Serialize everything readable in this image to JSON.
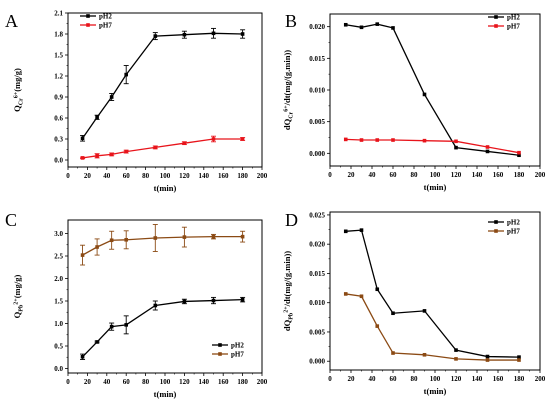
{
  "chart_data": [
    {
      "id": "A",
      "panel_label": "A",
      "type": "line",
      "error_bars": true,
      "xlabel": "t(min)",
      "ylabel_main": "Q",
      "ylabel_sub": "Cr",
      "ylabel_sup": "6+",
      "ylabel_tail": "(mg/g)",
      "xlim": [
        0,
        200
      ],
      "ylim": [
        -0.1,
        2.1
      ],
      "xticks": [
        "0",
        "20",
        "40",
        "60",
        "80",
        "100",
        "120",
        "140",
        "160",
        "180",
        "200"
      ],
      "yticks": [
        "0.0",
        "0.3",
        "0.6",
        "0.9",
        "1.2",
        "1.5",
        "1.8",
        "2.1"
      ],
      "legend_position": "top-left",
      "series": [
        {
          "name": "pH2",
          "color": "#000000",
          "x": [
            15,
            30,
            45,
            60,
            90,
            120,
            150,
            180
          ],
          "y": [
            0.31,
            0.61,
            0.9,
            1.22,
            1.77,
            1.79,
            1.81,
            1.8
          ],
          "err": [
            0.04,
            0.03,
            0.05,
            0.13,
            0.05,
            0.05,
            0.07,
            0.06
          ]
        },
        {
          "name": "pH7",
          "color": "#e8141b",
          "x": [
            15,
            30,
            45,
            60,
            90,
            120,
            150,
            180
          ],
          "y": [
            0.03,
            0.06,
            0.08,
            0.12,
            0.18,
            0.24,
            0.3,
            0.3
          ],
          "err": [
            0.01,
            0.03,
            0.02,
            0.02,
            0.02,
            0.02,
            0.04,
            0.02
          ]
        }
      ]
    },
    {
      "id": "B",
      "panel_label": "B",
      "type": "line",
      "error_bars": false,
      "xlabel": "t(min)",
      "ylabel_main": "dQ",
      "ylabel_sub": "Cr",
      "ylabel_sup": "6+",
      "ylabel_tail": "/dt(mg/(g.min))",
      "xlim": [
        0,
        200
      ],
      "ylim": [
        -0.002,
        0.022
      ],
      "xticks": [
        "0",
        "20",
        "40",
        "60",
        "80",
        "100",
        "120",
        "140",
        "160",
        "180",
        "200"
      ],
      "yticks": [
        "0.000",
        "0.005",
        "0.010",
        "0.015",
        "0.020"
      ],
      "legend_position": "top-right",
      "series": [
        {
          "name": "pH2",
          "color": "#000000",
          "x": [
            15,
            30,
            45,
            60,
            90,
            120,
            150,
            180
          ],
          "y": [
            0.0203,
            0.0199,
            0.0204,
            0.0198,
            0.0093,
            0.0009,
            0.0003,
            -0.0003
          ]
        },
        {
          "name": "pH7",
          "color": "#e8141b",
          "x": [
            15,
            30,
            45,
            60,
            90,
            120,
            150,
            180
          ],
          "y": [
            0.0022,
            0.0021,
            0.0021,
            0.0021,
            0.002,
            0.0019,
            0.001,
            0.0001
          ]
        }
      ]
    },
    {
      "id": "C",
      "panel_label": "C",
      "type": "line",
      "error_bars": true,
      "xlabel": "t(min)",
      "ylabel_main": "Q",
      "ylabel_sub": "Pb",
      "ylabel_sup": "2+",
      "ylabel_tail": "(mg/g)",
      "xlim": [
        0,
        200
      ],
      "ylim": [
        -0.1,
        3.3
      ],
      "xticks": [
        "0",
        "20",
        "40",
        "60",
        "80",
        "100",
        "120",
        "140",
        "160",
        "180",
        "200"
      ],
      "yticks": [
        "0.0",
        "0.5",
        "1.0",
        "1.5",
        "2.0",
        "2.5",
        "3.0"
      ],
      "legend_position": "bottom-right",
      "series": [
        {
          "name": "pH2",
          "color": "#000000",
          "x": [
            15,
            30,
            45,
            60,
            90,
            120,
            150,
            180
          ],
          "y": [
            0.26,
            0.59,
            0.93,
            0.97,
            1.4,
            1.49,
            1.51,
            1.53
          ],
          "err": [
            0.06,
            0.02,
            0.08,
            0.2,
            0.1,
            0.05,
            0.07,
            0.05
          ]
        },
        {
          "name": "pH7",
          "color": "#8b4a14",
          "x": [
            15,
            30,
            45,
            60,
            90,
            120,
            150,
            180
          ],
          "y": [
            2.52,
            2.7,
            2.85,
            2.86,
            2.9,
            2.92,
            2.93,
            2.93
          ],
          "err": [
            0.22,
            0.18,
            0.2,
            0.2,
            0.3,
            0.22,
            0.05,
            0.12
          ]
        }
      ]
    },
    {
      "id": "D",
      "panel_label": "D",
      "type": "line",
      "error_bars": false,
      "xlabel": "t(min)",
      "ylabel_main": "dQ",
      "ylabel_sub": "Pb",
      "ylabel_sup": "2+",
      "ylabel_tail": "/dt(mg/(g.min))",
      "xlim": [
        0,
        200
      ],
      "ylim": [
        -0.0015,
        0.0255
      ],
      "xticks": [
        "0",
        "20",
        "40",
        "60",
        "80",
        "100",
        "120",
        "140",
        "160",
        "180",
        "200"
      ],
      "yticks": [
        "0.000",
        "0.005",
        "0.010",
        "0.015",
        "0.020",
        "0.025"
      ],
      "legend_position": "top-right",
      "series": [
        {
          "name": "pH2",
          "color": "#000000",
          "x": [
            15,
            30,
            45,
            60,
            90,
            120,
            150,
            180
          ],
          "y": [
            0.0222,
            0.0224,
            0.0123,
            0.0082,
            0.0086,
            0.0019,
            0.0008,
            0.0007
          ]
        },
        {
          "name": "pH7",
          "color": "#8b4a14",
          "x": [
            15,
            30,
            45,
            60,
            90,
            120,
            150,
            180
          ],
          "y": [
            0.0115,
            0.0111,
            0.006,
            0.0014,
            0.0011,
            0.0004,
            0.0002,
            0.0002
          ]
        }
      ]
    }
  ]
}
